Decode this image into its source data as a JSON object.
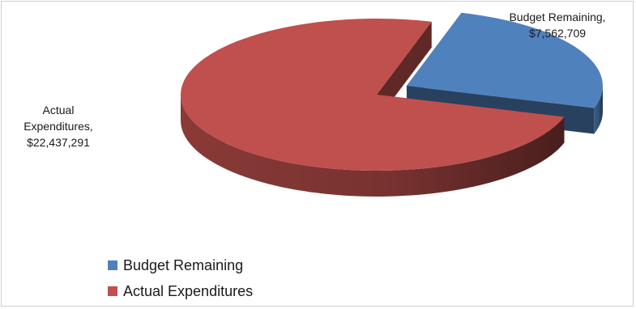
{
  "chart_data": {
    "type": "pie",
    "title": "",
    "style": "3d-exploded",
    "legend_position": "bottom-left",
    "slices": [
      {
        "name": "Budget Remaining",
        "value": 7562709,
        "label_name": "Budget Remaining,",
        "label_value": "$7,562,709",
        "color": "#4F81BD",
        "side_color": "#213A5E"
      },
      {
        "name": "Actual Expenditures",
        "value": 22437291,
        "label_name_lines": [
          "Actual",
          "Expenditures,"
        ],
        "label_value": "$22,437,291",
        "color": "#C0504D",
        "side_color": "#7E2A28"
      }
    ]
  }
}
